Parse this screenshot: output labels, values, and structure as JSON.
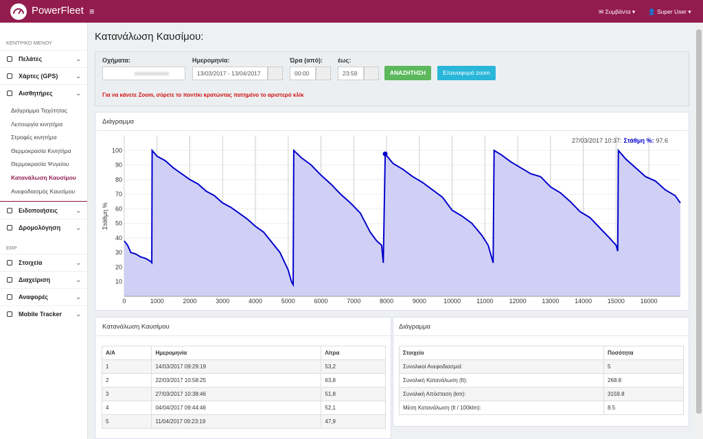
{
  "header": {
    "brand": "PowerFleet",
    "notifications": "Συμβάντα",
    "user": "Super User"
  },
  "sidebar": {
    "main_heading": "ΚΕΝΤΡΙΚΟ ΜΕΝΟΥ",
    "menu": [
      "Πελάτες",
      "Χάρτες (GPS)",
      "Αισθητήρες"
    ],
    "submenu": [
      "Διάγραμμα Ταχύτητας",
      "Λειτουργία κινητήρα",
      "Στροφές κινητήρα",
      "Θερμοκρασία Κινητήρα",
      "Θερμοκρασία Ψυγείου",
      "Κατανάλωση Καυσίμου",
      "Ανεφοδιασμός Καυσίμου"
    ],
    "active_submenu": "Κατανάλωση Καυσίμου",
    "menu2": [
      "Ειδοποιήσεις",
      "Δρομολόγηση"
    ],
    "erp_heading": "ERP",
    "erp_menu": [
      "Στοιχεία",
      "Διαχείριση",
      "Αναφορές",
      "Mobile Tracker"
    ]
  },
  "page": {
    "title": "Κατανάλωση Καυσίμου:"
  },
  "filters": {
    "vehicles_label": "Οχήματα:",
    "date_label": "Ημερομηνία:",
    "date_range": "13/03/2017 - 13/04/2017",
    "time_from_label": "Ώρα (από):",
    "time_from": "00:00",
    "time_to_label": "έως:",
    "time_to": "23:59",
    "search": "ΑΝΑΖΗΤΗΣΗ",
    "reset_zoom": "Επαναφορά zoom",
    "hint": "Για να κάνετε Zoom, σύρετε το ποντίκι κρατώντας πατημένο το αριστερό κλίκ"
  },
  "chart_panel": {
    "title": "Διάγραμμα"
  },
  "chart_data": {
    "type": "line",
    "y_label": "Στάθμη %",
    "tooltip": {
      "time": "27/03/2017 10:37:",
      "series": "Στάθμη %:",
      "value": 97.6
    },
    "x": [
      0,
      100,
      200,
      350,
      500,
      650,
      800,
      840,
      850,
      1000,
      1250,
      1500,
      1750,
      2000,
      2250,
      2500,
      2750,
      3000,
      3250,
      3500,
      3750,
      4000,
      4250,
      4500,
      4750,
      5000,
      5100,
      5150,
      5170,
      5400,
      5700,
      6000,
      6300,
      6600,
      6900,
      7200,
      7500,
      7700,
      7850,
      7900,
      7958,
      8200,
      8500,
      8800,
      9100,
      9400,
      9700,
      10000,
      10300,
      10600,
      10900,
      11100,
      11250,
      11280,
      11500,
      11800,
      12100,
      12400,
      12700,
      13000,
      13300,
      13600,
      13900,
      14200,
      14500,
      14800,
      15000,
      15050,
      15070,
      15300,
      15600,
      15900,
      16200,
      16500,
      16800,
      16960
    ],
    "series": [
      {
        "name": "Στάθμη %",
        "color": "#0000cc",
        "fill": "#d0d0f6",
        "values": [
          38,
          35,
          30,
          29,
          27,
          26,
          24,
          23,
          100,
          96,
          93,
          88,
          84,
          80,
          77,
          72,
          69,
          64,
          61,
          57,
          53,
          48,
          44,
          37,
          30,
          18,
          10,
          8,
          100,
          95,
          90,
          83,
          77,
          70,
          64,
          57,
          44,
          38,
          35,
          23,
          97.6,
          91,
          87,
          82,
          78,
          73,
          68,
          59,
          55,
          50,
          42,
          35,
          23,
          100,
          97,
          92,
          88,
          84,
          82,
          75,
          71,
          65,
          58,
          54,
          47,
          40,
          35,
          31,
          100,
          94,
          88,
          82,
          79,
          73,
          69,
          64
        ]
      }
    ],
    "xlim": [
      0,
      16960
    ],
    "ylim": [
      0,
      110
    ],
    "xticks": [
      0,
      1000,
      2000,
      3000,
      4000,
      5000,
      6000,
      7000,
      8000,
      9000,
      10000,
      11000,
      12000,
      13000,
      14000,
      15000,
      16000
    ],
    "yticks": [
      10,
      20,
      30,
      40,
      50,
      60,
      70,
      80,
      90,
      100
    ],
    "grid": true
  },
  "consumption": {
    "title": "Κατανάλωση Καυσίμου",
    "columns": [
      "Α/Α",
      "Ημερομηνία",
      "Λίτρα"
    ],
    "rows": [
      [
        "1",
        "14/03/2017 09:29:19",
        "53,2"
      ],
      [
        "2",
        "22/03/2017 10:58:25",
        "63,8"
      ],
      [
        "3",
        "27/03/2017 10:38:46",
        "51,8"
      ],
      [
        "4",
        "04/04/2017 09:44:46",
        "52,1"
      ],
      [
        "5",
        "11/04/2017 09:23:19",
        "47,9"
      ]
    ]
  },
  "summary": {
    "title": "Διάγραμμα",
    "columns": [
      "Στοιχείο",
      "Ποσότητα"
    ],
    "rows": [
      [
        "Συνολικοί Ανεφοδιασμοί:",
        "5"
      ],
      [
        "Συνολική Κατανάλωση (lt):",
        "268.8"
      ],
      [
        "Συνολική Απόσταση (km):",
        "3159.8"
      ],
      [
        "Μέση Κατανάλωση (lt / 100klm):",
        "8.5"
      ]
    ]
  }
}
